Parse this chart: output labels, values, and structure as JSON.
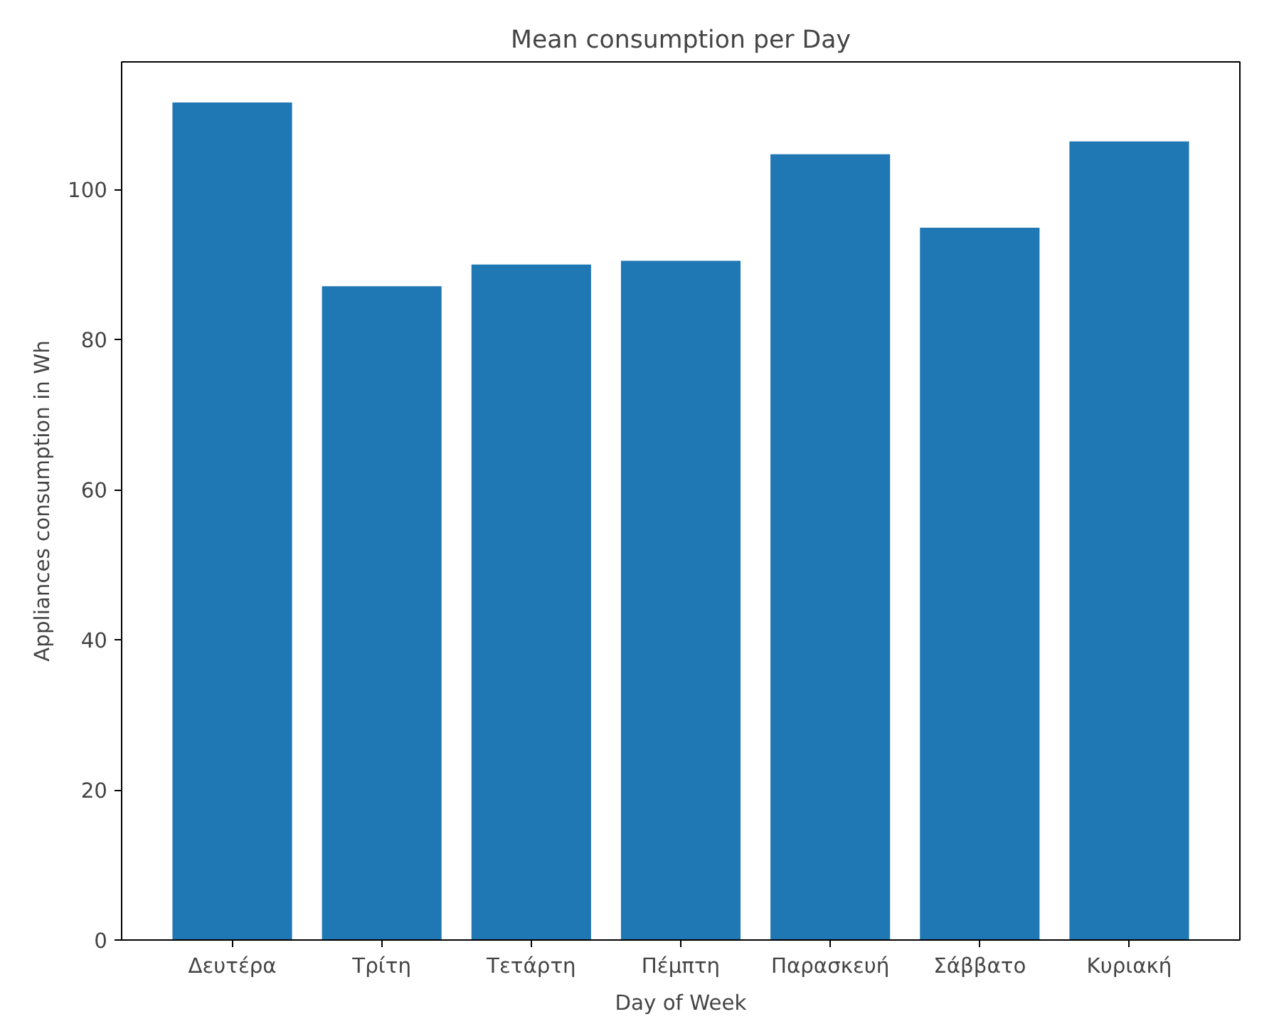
{
  "chart_data": {
    "type": "bar",
    "title": "Mean consumption per Day",
    "xlabel": "Day of Week",
    "ylabel": "Appliances consumption in Wh",
    "categories": [
      "Δευτέρα",
      "Τρίτη",
      "Τετάρτη",
      "Πέμπτη",
      "Παρασκευή",
      "Σάββατο",
      "Κυριακή"
    ],
    "values": [
      111.6,
      87.1,
      90.0,
      90.5,
      104.7,
      94.9,
      106.4
    ],
    "color": "#1f77b4",
    "ylim": [
      0,
      117
    ],
    "yticks": [
      0,
      20,
      40,
      60,
      80,
      100
    ],
    "grid": false
  }
}
